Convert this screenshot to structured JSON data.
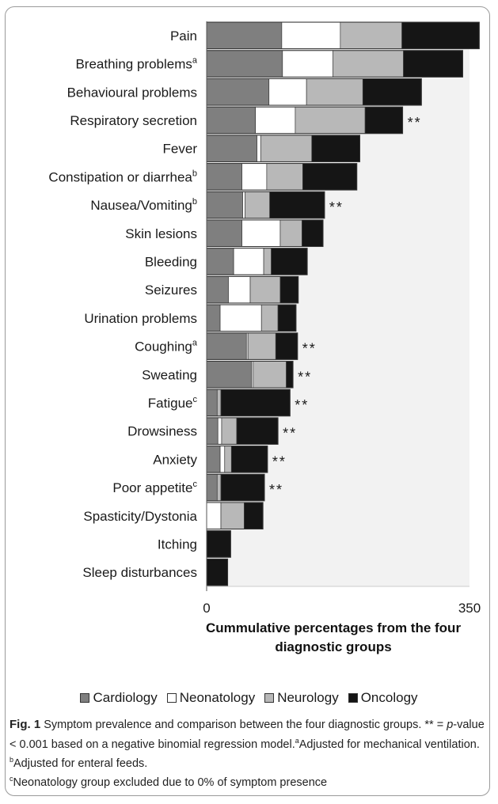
{
  "chart_data": {
    "type": "bar",
    "stacked": true,
    "orientation": "horizontal",
    "categories": [
      {
        "label": "Pain",
        "sup": ""
      },
      {
        "label": "Breathing problems",
        "sup": "a"
      },
      {
        "label": "Behavioural problems",
        "sup": ""
      },
      {
        "label": "Respiratory secretion",
        "sup": ""
      },
      {
        "label": "Fever",
        "sup": ""
      },
      {
        "label": "Constipation or diarrhea",
        "sup": "b"
      },
      {
        "label": "Nausea/Vomiting",
        "sup": "b"
      },
      {
        "label": "Skin lesions",
        "sup": ""
      },
      {
        "label": "Bleeding",
        "sup": ""
      },
      {
        "label": "Seizures",
        "sup": ""
      },
      {
        "label": "Urination problems",
        "sup": ""
      },
      {
        "label": "Coughing",
        "sup": "a"
      },
      {
        "label": "Sweating",
        "sup": ""
      },
      {
        "label": "Fatigue",
        "sup": "c"
      },
      {
        "label": "Drowsiness",
        "sup": ""
      },
      {
        "label": "Anxiety",
        "sup": ""
      },
      {
        "label": "Poor appetite",
        "sup": "c"
      },
      {
        "label": "Spasticity/Dystonia",
        "sup": ""
      },
      {
        "label": "Itching",
        "sup": ""
      },
      {
        "label": "Sleep disturbances",
        "sup": ""
      }
    ],
    "series": [
      {
        "name": "Cardiology",
        "color": "#7f7f7f",
        "values": [
          100,
          101,
          83,
          65,
          67,
          47,
          48,
          47,
          36,
          29,
          18,
          53,
          60,
          14,
          15,
          18,
          14,
          0,
          0,
          0
        ]
      },
      {
        "name": "Neonatology",
        "color": "#ffffff",
        "values": [
          78,
          67,
          50,
          53,
          5,
          33,
          3,
          51,
          40,
          29,
          55,
          2,
          2,
          0,
          5,
          6,
          0,
          19,
          0,
          0
        ]
      },
      {
        "name": "Neurology",
        "color": "#b8b8b8",
        "values": [
          82,
          94,
          75,
          93,
          68,
          48,
          33,
          29,
          10,
          40,
          22,
          37,
          44,
          5,
          20,
          9,
          5,
          31,
          0,
          0
        ]
      },
      {
        "name": "Oncology",
        "color": "#151515",
        "values": [
          103,
          79,
          78,
          50,
          64,
          72,
          73,
          28,
          48,
          24,
          24,
          29,
          9,
          92,
          55,
          48,
          58,
          25,
          32,
          28
        ]
      }
    ],
    "significance": [
      "",
      "",
      "",
      "**",
      "",
      "",
      "**",
      "",
      "",
      "",
      "",
      "**",
      "**",
      "**",
      "**",
      "**",
      "**",
      "",
      "",
      ""
    ],
    "xlim": [
      0,
      350
    ],
    "xticks": [
      "0",
      "350"
    ],
    "xlabel": "Cummulative percentages from the four diagnostic groups",
    "legend_position": "bottom"
  },
  "caption": {
    "fig_label": "Fig. 1",
    "text1": " Symptom prevalence and comparison between the four diagnostic groups. ** = ",
    "p_italic": "p",
    "text2": "-value < 0.001 based on a negative binomial regression model.",
    "sup_a": "a",
    "note_a": "Adjusted for mechanical ventilation. ",
    "sup_b": "b",
    "note_b": "Adjusted for enteral feeds.",
    "sup_c": "c",
    "note_c": "Neonatology group excluded due to 0% of symptom presence"
  }
}
